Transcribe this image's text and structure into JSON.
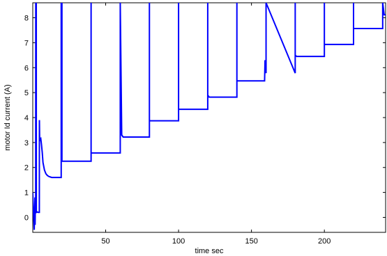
{
  "chart_data": {
    "type": "line",
    "title": "",
    "xlabel": "time sec",
    "ylabel": "motor Id current (A)",
    "xlim": [
      0,
      242
    ],
    "ylim": [
      -0.6,
      8.6
    ],
    "xticks": [
      50,
      100,
      150,
      200
    ],
    "yticks": [
      0,
      1,
      2,
      3,
      4,
      5,
      6,
      7,
      8
    ],
    "grid": false,
    "series_color": "#0000ff",
    "series": [
      {
        "x": [
          0,
          0.5,
          1,
          1.5,
          1.6,
          1.8,
          2,
          2.05,
          2.4,
          2.45,
          3,
          3.5,
          4,
          4.5,
          4.55,
          4.7,
          5,
          5.5,
          6,
          6.5,
          7,
          8,
          9,
          10,
          11,
          12,
          13,
          14,
          15,
          16,
          17,
          18,
          19,
          19.5,
          19.5,
          20,
          20,
          40,
          40,
          40,
          40,
          60,
          60,
          60,
          61,
          62,
          70,
          80,
          80,
          80,
          80,
          100,
          100,
          100,
          100,
          120,
          120,
          120,
          120,
          121,
          130,
          140,
          140,
          140,
          140,
          150,
          159,
          159.3,
          160,
          160,
          160,
          160,
          180,
          180,
          180,
          180,
          181,
          190,
          200,
          200,
          200,
          200,
          220,
          220,
          220,
          220,
          240,
          240,
          240,
          241,
          242
        ],
        "y": [
          1,
          0.2,
          -0.5,
          0.8,
          -0.3,
          0.6,
          0.2,
          8.6,
          8.6,
          0.2,
          0.22,
          0.2,
          0.2,
          0.2,
          3.9,
          3.2,
          3.1,
          3.15,
          2.9,
          2.6,
          2.2,
          1.9,
          1.75,
          1.68,
          1.64,
          1.62,
          1.6,
          1.6,
          1.6,
          1.6,
          1.6,
          1.6,
          1.6,
          1.6,
          8.6,
          8.6,
          2.25,
          2.25,
          8.6,
          8.6,
          2.58,
          2.58,
          8.6,
          8.6,
          3.3,
          3.22,
          3.22,
          3.22,
          8.6,
          8.6,
          3.87,
          3.87,
          8.6,
          8.6,
          4.33,
          4.33,
          8.6,
          8.6,
          4.9,
          4.82,
          4.82,
          4.82,
          8.6,
          8.6,
          5.47,
          5.47,
          5.47,
          6.3,
          5.78,
          5.78,
          8.6,
          8.6,
          5.78,
          8.6,
          8.6,
          6.5,
          6.45,
          6.45,
          6.45,
          8.6,
          8.6,
          6.93,
          6.93,
          8.6,
          8.6,
          7.57,
          7.57,
          8.6,
          8.6,
          8.12,
          8.12
        ]
      }
    ]
  }
}
